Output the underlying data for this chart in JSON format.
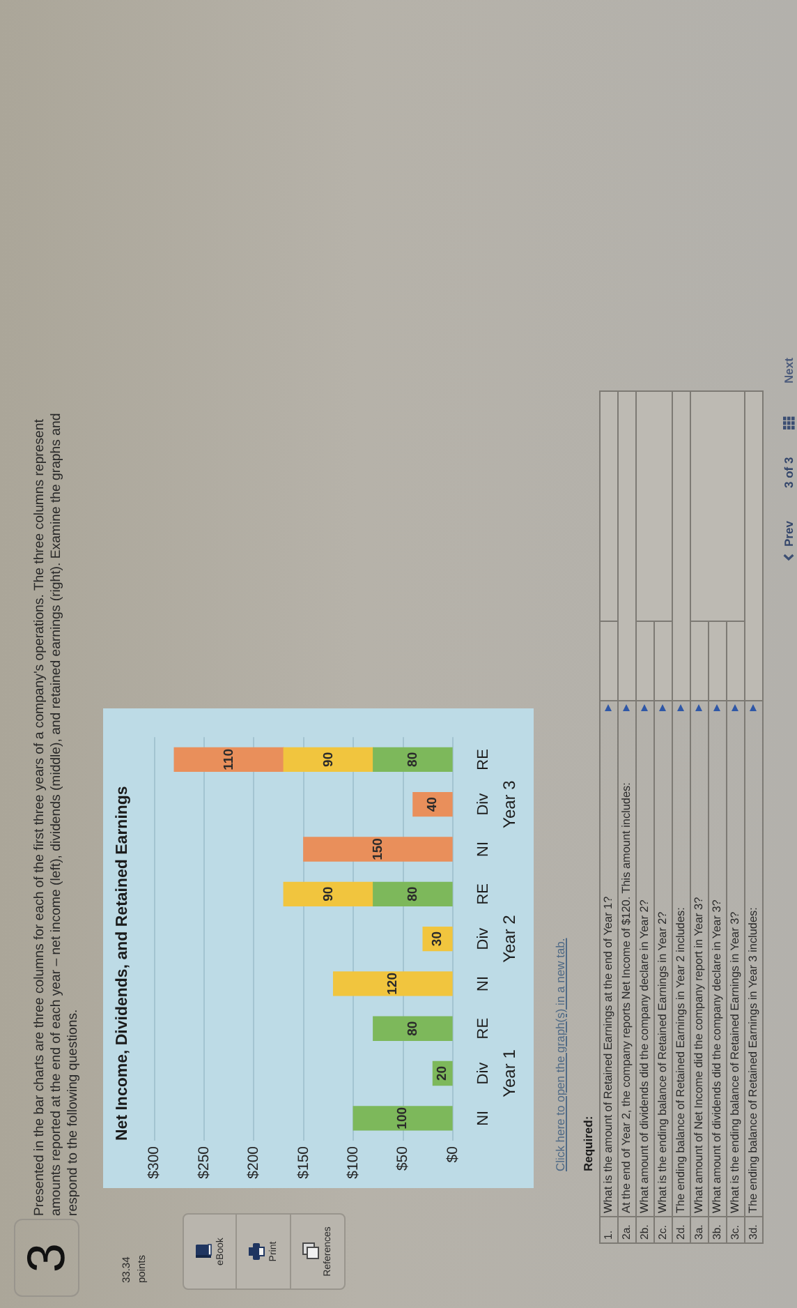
{
  "chart_data": {
    "type": "bar",
    "title": "Net Income, Dividends, and Retained Earnings",
    "orientation": "horizontal",
    "categories": [
      "RE",
      "Div",
      "NI",
      "RE",
      "Div",
      "NI",
      "RE",
      "Div",
      "NI"
    ],
    "series": [
      {
        "color": "#7db85b",
        "values": [
          80,
          null,
          null,
          80,
          null,
          null,
          80,
          20,
          100
        ]
      },
      {
        "color": "#f1c53e",
        "values": [
          90,
          null,
          null,
          90,
          30,
          120,
          null,
          null,
          null
        ]
      },
      {
        "color": "#e98f5b",
        "values": [
          110,
          40,
          150,
          null,
          null,
          null,
          null,
          null,
          null
        ]
      }
    ],
    "stacked": true,
    "xlim": [
      300,
      0
    ],
    "xticks": [
      {
        "value": 0,
        "label": "$0"
      },
      {
        "value": 50,
        "label": "$50"
      },
      {
        "value": 100,
        "label": "$100"
      },
      {
        "value": 150,
        "label": "$150"
      },
      {
        "value": 200,
        "label": "$200"
      },
      {
        "value": 250,
        "label": "$250"
      },
      {
        "value": 300,
        "label": "$300"
      }
    ],
    "grid": "x",
    "data_labels": true,
    "annotations": [
      "Year 3",
      "Year 2",
      "Year 1",
      "3",
      "Presented in the bar charts are three columns for each of the first three years of a company's operations. The three columns represent amounts reported at the end of each year – net income (left), dividends (middle), and retained earnings (right). Examine the graphs and respond to the following questions.",
      "33.34",
      "points",
      "eBook",
      "Print",
      "References",
      "Click here to open the graph(s) in a new tab.",
      "Required:",
      "Prev",
      "3 of 3",
      "Next",
      "1.",
      "What is the amount of Retained Earnings at the end of Year 1?",
      "2a.",
      "At the end of Year 2, the company reports Net Income of $120. This amount includes:",
      "2b.",
      "What amount of dividends did the company declare in Year 2?",
      "2c.",
      "What is the ending balance of Retained Earnings in Year 2?",
      "2d.",
      "The ending balance of Retained Earnings in Year 2 includes:",
      "3a.",
      "What amount of Net Income did the company report in Year 3?",
      "3b.",
      "What amount of dividends did the company declare in Year 3?",
      "3c.",
      "What is the ending balance of Retained Earnings in Year 3?",
      "3d.",
      "The ending balance of Retained Earnings in Year 3 includes:"
    ]
  }
}
